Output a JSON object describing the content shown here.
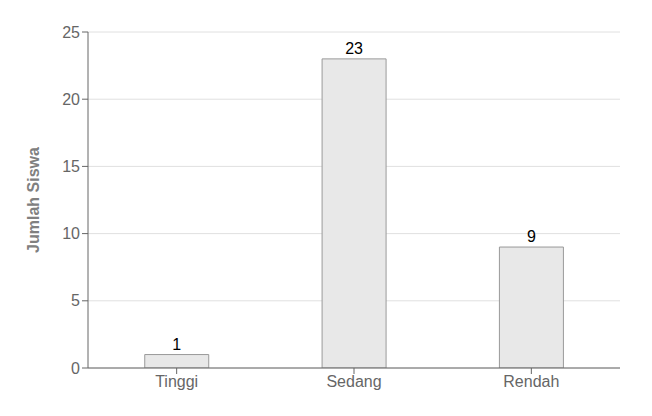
{
  "chart_data": {
    "type": "bar",
    "categories": [
      "Tinggi",
      "Sedang",
      "Rendah"
    ],
    "values": [
      1,
      23,
      9
    ],
    "color": "#e8e8e8",
    "ylabel": "Jumlah Siswa",
    "ylim": [
      0,
      25
    ],
    "yticks": [
      0,
      5,
      10,
      15,
      20,
      25
    ],
    "grid": true,
    "data_labels": true
  }
}
